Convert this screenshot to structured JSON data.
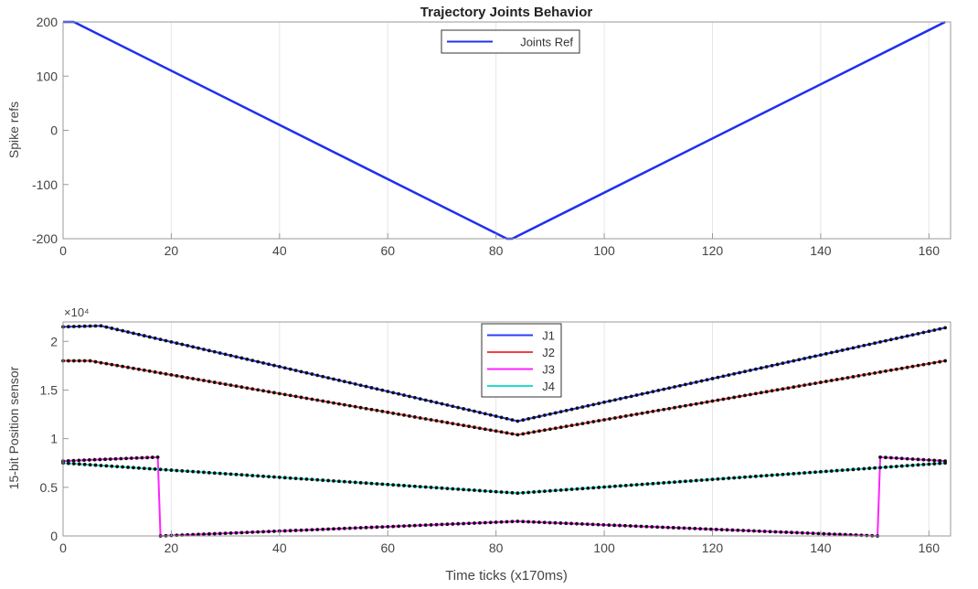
{
  "chart_data": [
    {
      "type": "line",
      "title": "Trajectory Joints Behavior",
      "xlabel": "",
      "ylabel": "Spike refs",
      "xlim": [
        0,
        164
      ],
      "ylim": [
        -200,
        200
      ],
      "xticks": [
        0,
        20,
        40,
        60,
        80,
        100,
        120,
        140,
        160
      ],
      "xtick_labels": [
        "0",
        "20",
        "40",
        "60",
        "80",
        "100",
        "120",
        "140",
        "160"
      ],
      "yticks": [
        -200,
        -100,
        0,
        100,
        200
      ],
      "ytick_labels": [
        "-200",
        "-100",
        "0",
        "100",
        "200"
      ],
      "grid": "vertical",
      "legend_position": "top-center",
      "series": [
        {
          "name": "Joints Ref",
          "color": "#1f2ff0",
          "x": [
            0,
            2,
            82,
            83,
            163
          ],
          "y": [
            200,
            200,
            -200,
            -200,
            200
          ]
        }
      ]
    },
    {
      "type": "line",
      "title": "",
      "xlabel": "Time ticks (x170ms)",
      "ylabel": "15-bit Position sensor",
      "exponent_label": "×10⁴",
      "xlim": [
        0,
        164
      ],
      "ylim": [
        0,
        2.2
      ],
      "xticks": [
        0,
        20,
        40,
        60,
        80,
        100,
        120,
        140,
        160
      ],
      "xtick_labels": [
        "0",
        "20",
        "40",
        "60",
        "80",
        "100",
        "120",
        "140",
        "160"
      ],
      "yticks": [
        0,
        0.5,
        1,
        1.5,
        2
      ],
      "ytick_labels": [
        "0",
        "0.5",
        "1",
        "1.5",
        "2"
      ],
      "grid": "vertical",
      "legend_position": "top-center",
      "series": [
        {
          "name": "J1",
          "color": "#2a3fff",
          "x": [
            0,
            7,
            84,
            163
          ],
          "y": [
            2.15,
            2.16,
            1.18,
            2.14
          ]
        },
        {
          "name": "J2",
          "color": "#f04040",
          "x": [
            0,
            5,
            84,
            163
          ],
          "y": [
            1.8,
            1.8,
            1.04,
            1.8
          ]
        },
        {
          "name": "J3",
          "color": "#ff22ff",
          "x": [
            0,
            17.5,
            18,
            84,
            150.5,
            151,
            163
          ],
          "y": [
            0.77,
            0.81,
            0.0,
            0.15,
            0.0,
            0.81,
            0.77
          ]
        },
        {
          "name": "J4",
          "color": "#22ddcc",
          "x": [
            0,
            84,
            163
          ],
          "y": [
            0.75,
            0.44,
            0.75
          ]
        }
      ]
    }
  ]
}
